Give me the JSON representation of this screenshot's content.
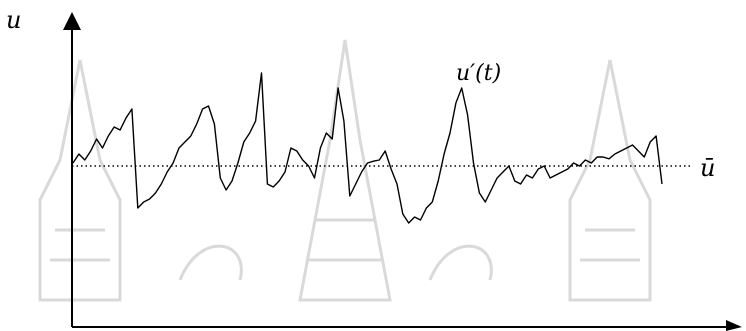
{
  "chart_data": {
    "type": "line",
    "title": "",
    "ylabel": "u",
    "xlabel": "",
    "mean_label": "ū",
    "fluctuation_label": "u′(t)",
    "mean_value": 0,
    "ylim": [
      -1.5,
      2.0
    ],
    "xlim": [
      0,
      100
    ],
    "grid": false,
    "series": [
      {
        "x": [
          0,
          1,
          2,
          3,
          4,
          5,
          6,
          7,
          8,
          9,
          10,
          11,
          12,
          13,
          14,
          15,
          16,
          17,
          18,
          19,
          20,
          21,
          22,
          23,
          24,
          25,
          26,
          27,
          28,
          29,
          30,
          31,
          32,
          33,
          34,
          35,
          36,
          37,
          38,
          39,
          40,
          41,
          42,
          43,
          44,
          45,
          46,
          47,
          48,
          49,
          50,
          51,
          52,
          53,
          54,
          55,
          56,
          57,
          58,
          59,
          60,
          61,
          62,
          63,
          64,
          65,
          66,
          67,
          68,
          69,
          70,
          71,
          72,
          73,
          74,
          75,
          76,
          77,
          78,
          79,
          80,
          81,
          82,
          83,
          84,
          85,
          86,
          87,
          88,
          89,
          90,
          91,
          92,
          93,
          94,
          95,
          96,
          97,
          98,
          99,
          100
        ],
        "values": [
          0.05,
          0.2,
          0.1,
          0.25,
          0.45,
          0.3,
          0.5,
          0.65,
          0.6,
          0.8,
          0.95,
          -0.7,
          -0.6,
          -0.55,
          -0.45,
          -0.3,
          -0.1,
          0.05,
          0.3,
          0.4,
          0.5,
          0.7,
          0.95,
          1.0,
          0.7,
          -0.2,
          -0.4,
          -0.25,
          0.05,
          0.4,
          0.55,
          0.75,
          1.55,
          -0.3,
          -0.35,
          -0.25,
          -0.1,
          0.3,
          0.25,
          0.1,
          0.0,
          -0.2,
          0.3,
          0.55,
          0.45,
          1.3,
          0.75,
          -0.5,
          -0.3,
          -0.1,
          0.05,
          0.08,
          0.1,
          0.25,
          -0.05,
          -0.3,
          -0.8,
          -0.95,
          -0.85,
          -0.9,
          -0.7,
          -0.6,
          -0.25,
          0.2,
          0.55,
          1.05,
          1.3,
          0.85,
          0.05,
          -0.45,
          -0.6,
          -0.4,
          -0.2,
          -0.1,
          0.0,
          -0.25,
          -0.3,
          -0.15,
          -0.2,
          -0.05,
          0.0,
          -0.2,
          -0.15,
          -0.1,
          -0.05,
          0.05,
          0.0,
          0.1,
          0.05,
          0.15,
          0.15,
          0.12,
          0.2,
          0.25,
          0.3,
          0.35,
          0.25,
          0.15,
          0.4,
          0.5,
          -0.3
        ]
      }
    ]
  }
}
